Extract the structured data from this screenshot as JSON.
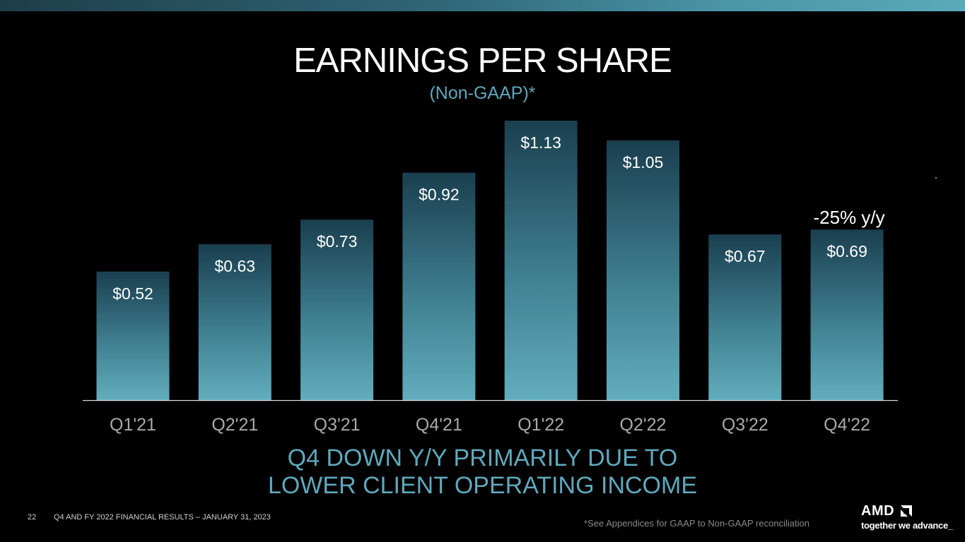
{
  "slide": {
    "title": "EARNINGS PER SHARE",
    "subtitle": "(Non-GAAP)*",
    "takeaway_line1": "Q4 DOWN Y/Y PRIMARILY DUE TO",
    "takeaway_line2": "LOWER CLIENT OPERATING INCOME",
    "page_number": "22",
    "footer_title": "Q4 AND FY 2022 FINANCIAL RESULTS – JANUARY 31, 2023",
    "footnote": "*See Appendices for GAAP to Non-GAAP reconciliation"
  },
  "logo": {
    "wordmark": "AMD",
    "tagline": "together we advance_"
  },
  "colors": {
    "accent": "#5fa8bb",
    "bar_top": "#1a3f4f",
    "bar_bottom": "#62adbd",
    "background": "#000000"
  },
  "chart_data": {
    "type": "bar",
    "title": "EARNINGS PER SHARE",
    "subtitle": "(Non-GAAP)*",
    "categories": [
      "Q1'21",
      "Q2'21",
      "Q3'21",
      "Q4'21",
      "Q1'22",
      "Q2'22",
      "Q3'22",
      "Q4'22"
    ],
    "values": [
      0.52,
      0.63,
      0.73,
      0.92,
      1.13,
      1.05,
      0.67,
      0.69
    ],
    "value_labels": [
      "$0.52",
      "$0.63",
      "$0.73",
      "$0.92",
      "$1.13",
      "$1.05",
      "$0.67",
      "$0.69"
    ],
    "ylim": [
      0,
      1.13
    ],
    "grid": false,
    "annotations": [
      {
        "category": "Q4'22",
        "text": "-25% y/y"
      }
    ]
  }
}
